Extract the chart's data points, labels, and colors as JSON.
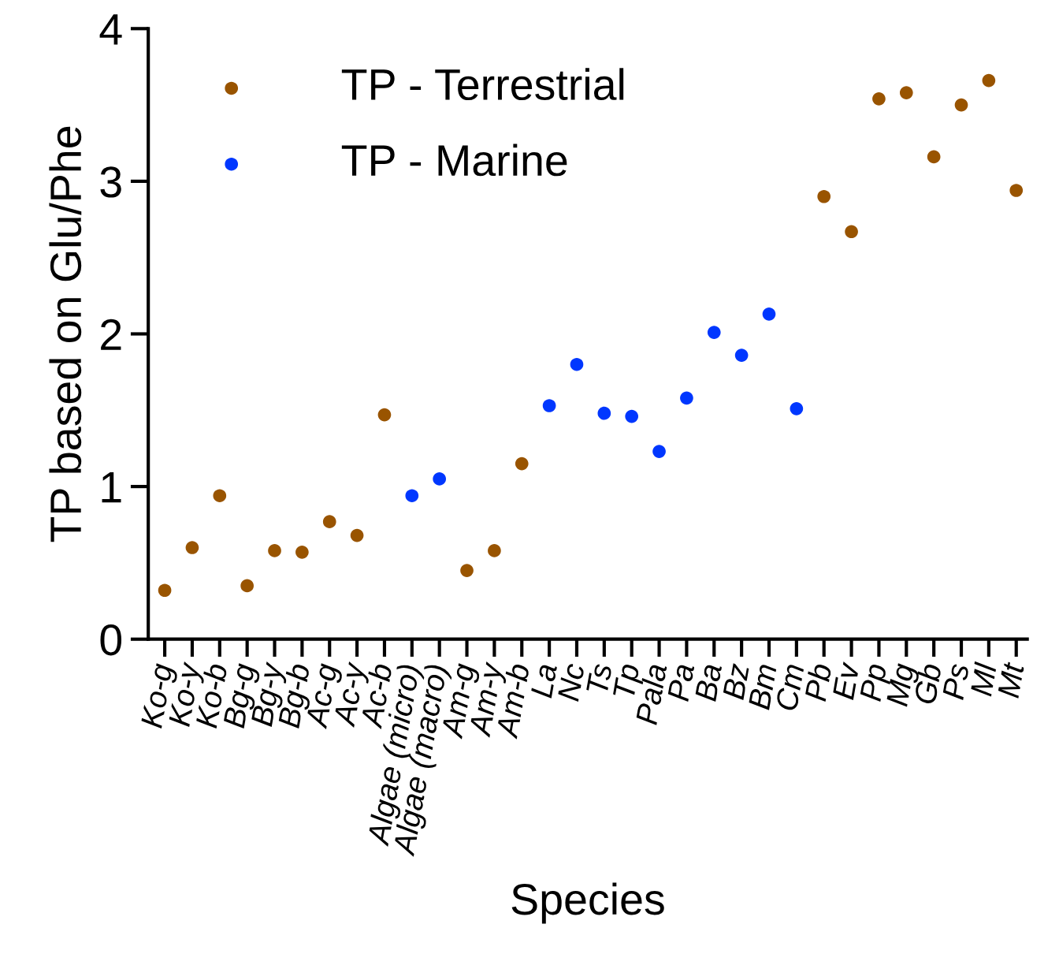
{
  "chart_data": {
    "type": "scatter",
    "xlabel": "Species",
    "ylabel": "TP based on Glu/Phe",
    "categories": [
      "Ko-g",
      "Ko-y",
      "Ko-b",
      "Bg-g",
      "Bg-y",
      "Bg-b",
      "Ac-g",
      "Ac-y",
      "Ac-b",
      "Algae (micro)",
      "Algae (macro)",
      "Am-g",
      "Am-y",
      "Am-b",
      "La",
      "Nc",
      "Ts",
      "Tp",
      "Pala",
      "Pa",
      "Ba",
      "Bz",
      "Bm",
      "Cm",
      "Pb",
      "Ev",
      "Pp",
      "Mg",
      "Gb",
      "Ps",
      "Ml",
      "Mt"
    ],
    "series": [
      {
        "name": "TP - Terrestrial",
        "color": "#995400",
        "values": [
          0.32,
          0.6,
          0.94,
          0.35,
          0.58,
          0.57,
          0.77,
          0.68,
          1.47,
          null,
          null,
          0.45,
          0.58,
          1.15,
          null,
          null,
          null,
          null,
          null,
          null,
          null,
          null,
          null,
          null,
          2.9,
          2.67,
          3.54,
          3.58,
          3.16,
          3.5,
          3.66,
          2.94
        ]
      },
      {
        "name": "TP - Marine",
        "color": "#0037ff",
        "values": [
          null,
          null,
          null,
          null,
          null,
          null,
          null,
          null,
          null,
          0.94,
          1.05,
          null,
          null,
          null,
          1.53,
          1.8,
          1.48,
          1.46,
          1.23,
          1.58,
          2.01,
          1.86,
          2.13,
          1.51,
          null,
          null,
          null,
          null,
          null,
          null,
          null,
          null
        ]
      }
    ],
    "ylim": [
      0,
      4
    ],
    "yticks": [
      0,
      1,
      2,
      3,
      4
    ],
    "grid": false,
    "legend": "top left",
    "marker": "circle"
  }
}
